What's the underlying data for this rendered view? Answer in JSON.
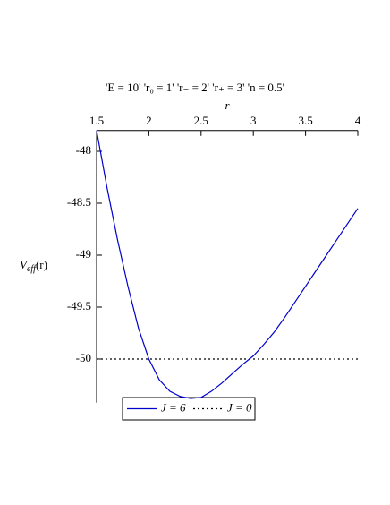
{
  "chart_data": {
    "type": "line",
    "title": "'E = 10' 'r₀ = 1' 'r₋ = 2' 'r₊ = 3' 'n = 0.5'",
    "x_label": "r",
    "y_label": [
      "V",
      "eff",
      "(r)"
    ],
    "series": [
      {
        "name": "J = 6",
        "color": "#0000cc",
        "style": "solid",
        "x": [
          1.5,
          1.6,
          1.7,
          1.8,
          1.9,
          2.0,
          2.1,
          2.2,
          2.3,
          2.4,
          2.5,
          2.6,
          2.7,
          2.8,
          2.9,
          3.0,
          3.1,
          3.2,
          3.3,
          3.4,
          3.5,
          3.6,
          3.7,
          3.8,
          3.9,
          4.0
        ],
        "values": [
          -47.8,
          -48.35,
          -48.85,
          -49.3,
          -49.7,
          -50.0,
          -50.2,
          -50.31,
          -50.36,
          -50.38,
          -50.37,
          -50.31,
          -50.23,
          -50.14,
          -50.05,
          -49.97,
          -49.86,
          -49.74,
          -49.6,
          -49.45,
          -49.3,
          -49.15,
          -49.0,
          -48.85,
          -48.7,
          -48.55
        ]
      },
      {
        "name": "J = 0",
        "color": "#000000",
        "style": "dotted",
        "x": [
          1.5,
          4.0
        ],
        "values": [
          -50,
          -50
        ]
      }
    ],
    "xlim": [
      1.5,
      4.0
    ],
    "ylim": [
      -50.42,
      -47.8
    ],
    "xticks": [
      1.5,
      2,
      2.5,
      3,
      3.5,
      4
    ],
    "yticks": [
      -48,
      -48.5,
      -49,
      -49.5,
      -50
    ]
  }
}
